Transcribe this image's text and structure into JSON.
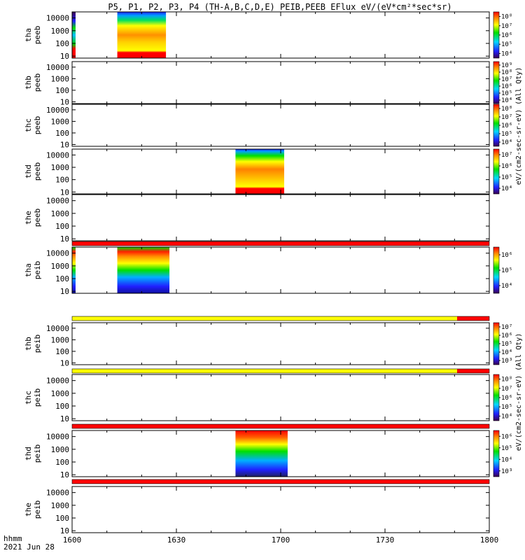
{
  "title": "P5, P1, P2, P3, P4 (TH-A,B,C,D,E) PEIB,PEEB EFlux eV/(eV*cm²*sec*sr)",
  "time_axis": {
    "label_line1": "hhmm",
    "label_line2": "2021 Jun 28",
    "ticks": [
      "1600",
      "1630",
      "1700",
      "1730",
      "1800"
    ]
  },
  "energy_ticks": [
    "10",
    "100",
    "1000",
    "10000"
  ],
  "panels": [
    {
      "line1": "tha",
      "line2": "peeb"
    },
    {
      "line1": "thb",
      "line2": "peeb"
    },
    {
      "line1": "thc",
      "line2": "peeb"
    },
    {
      "line1": "thd",
      "line2": "peeb"
    },
    {
      "line1": "the",
      "line2": "peeb"
    },
    {
      "line1": "tha",
      "line2": "peib"
    },
    {
      "line1": "thb",
      "line2": "peib"
    },
    {
      "line1": "thc",
      "line2": "peib"
    },
    {
      "line1": "thd",
      "line2": "peib"
    },
    {
      "line1": "the",
      "line2": "peib"
    }
  ],
  "colorbar_labels": {
    "electrons": "eV/(cm2-sec-sr-eV) (All Qty)",
    "ions": "eV/(cm2-sec-sr-eV) (All Qty)"
  },
  "colorbars": [
    {
      "ticks": [
        "10⁴",
        "10⁵",
        "10⁶",
        "10⁷",
        "10⁸"
      ]
    },
    {
      "ticks": [
        "10⁴",
        "10⁵",
        "10⁶",
        "10⁷",
        "10⁸",
        "10⁹"
      ]
    },
    {
      "ticks": [
        "10⁴",
        "10⁵",
        "10⁶",
        "10⁷",
        "10⁸"
      ]
    },
    {
      "ticks": [
        "10⁴",
        "10⁵",
        "10⁶",
        "10⁷"
      ]
    },
    {
      "ticks": [
        "10⁴",
        "10⁵",
        "10⁶"
      ]
    },
    {
      "ticks": [
        "10³",
        "10⁴",
        "10⁵",
        "10⁶",
        "10⁷"
      ]
    },
    {
      "ticks": [
        "10⁴",
        "10⁵",
        "10⁶",
        "10⁷",
        "10⁸"
      ]
    },
    {
      "ticks": [
        "10³",
        "10⁴",
        "10⁵",
        "10⁶"
      ]
    }
  ],
  "chart_data": {
    "type": "heatmap",
    "title": "P5, P1, P2, P3, P4 (TH-A,B,C,D,E) PEIB,PEEB EFlux eV/(eV*cm²*sec*sr)",
    "x_range": [
      "16:00",
      "18:00"
    ],
    "y_scale": "log",
    "y_range_eV": [
      7,
      30000
    ],
    "color_scale": "log, rainbow (purple = low, red = high)",
    "panels": [
      {
        "probe": "tha",
        "product": "peeb",
        "data_intervals": [
          [
            "16:00",
            "16:01"
          ],
          [
            "16:13",
            "16:27"
          ]
        ]
      },
      {
        "probe": "thb",
        "product": "peeb",
        "data_intervals": []
      },
      {
        "probe": "thc",
        "product": "peeb",
        "data_intervals": []
      },
      {
        "probe": "thd",
        "product": "peeb",
        "data_intervals": [
          [
            "16:47",
            "17:01"
          ]
        ]
      },
      {
        "probe": "the",
        "product": "peeb",
        "data_intervals": []
      },
      {
        "probe": "tha",
        "product": "peib",
        "data_intervals": [
          [
            "16:00",
            "16:01"
          ],
          [
            "16:13",
            "16:28"
          ]
        ]
      },
      {
        "probe": "thb",
        "product": "peib",
        "data_intervals": []
      },
      {
        "probe": "thc",
        "product": "peib",
        "data_intervals": []
      },
      {
        "probe": "thd",
        "product": "peib",
        "data_intervals": [
          [
            "16:47",
            "17:02"
          ]
        ]
      },
      {
        "probe": "the",
        "product": "peib",
        "data_intervals": []
      }
    ]
  },
  "colors": {
    "purple": "#4b0082",
    "blue": "#2020ff",
    "cyan": "#00d8ff",
    "green": "#00e000",
    "yellow": "#ffff00",
    "orange": "#ff8c00",
    "red": "#ff0000",
    "black": "#000000"
  }
}
